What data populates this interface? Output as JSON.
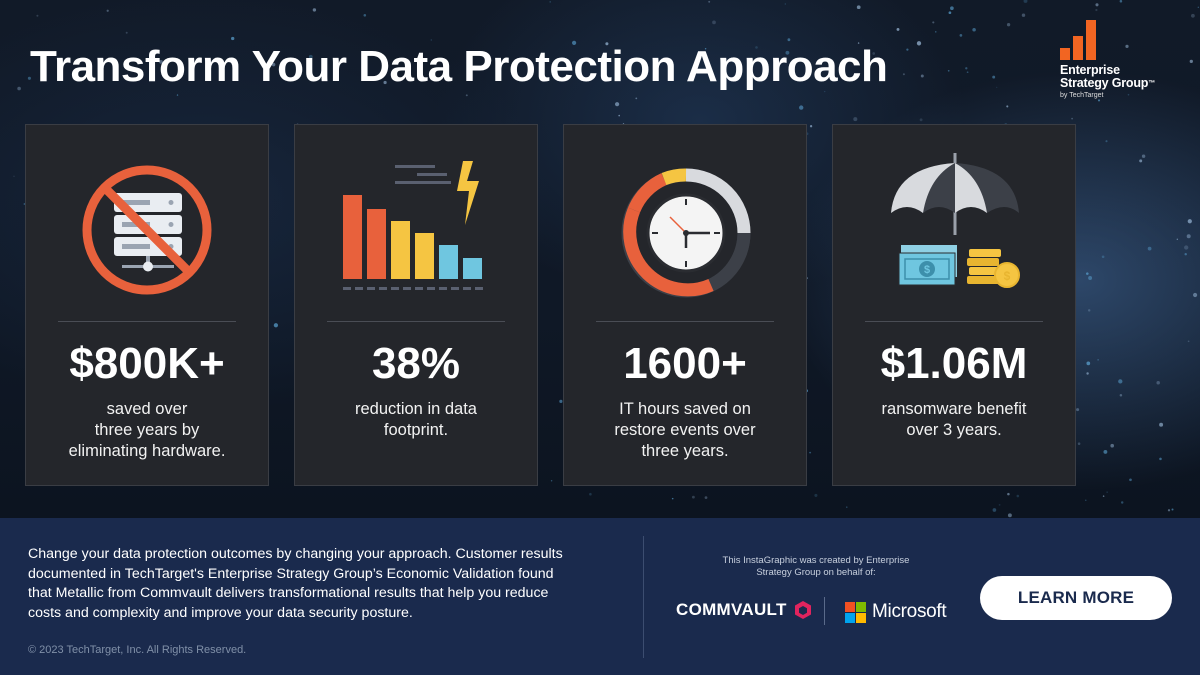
{
  "title": "Transform Your Data Protection Approach",
  "logo": {
    "name_line1": "Enterprise",
    "name_line2": "Strategy Group",
    "trademark": "™",
    "by": "by TechTarget",
    "accent": "#f26522"
  },
  "cards": [
    {
      "value": "$800K+",
      "desc_lines": [
        "saved over",
        "three years by",
        "eliminating hardware."
      ],
      "icon": "no-server-icon"
    },
    {
      "value": "38%",
      "desc_lines": [
        "reduction in data",
        "footprint."
      ],
      "icon": "bar-chart-lightning-icon"
    },
    {
      "value": "1600+",
      "desc_lines": [
        "IT hours saved on",
        "restore events over",
        "three years."
      ],
      "icon": "clock-icon"
    },
    {
      "value": "$1.06M",
      "desc_lines": [
        "ransomware benefit",
        "over 3 years."
      ],
      "icon": "umbrella-money-icon"
    }
  ],
  "footer": {
    "body_lines": [
      "Change your data protection outcomes by changing your approach. Customer results",
      "documented in TechTarget's Enterprise Strategy Group’s Economic Validation found",
      "that Metallic from Commvault delivers transformational results that help you reduce",
      "costs and complexity and improve your data security posture."
    ],
    "copyright": "© 2023 TechTarget, Inc. All Rights Reserved.",
    "credit_lines": [
      "This InstaGraphic was created by Enterprise",
      "Strategy Group on behalf of:"
    ],
    "commvault": "COMMVAULT",
    "microsoft": "Microsoft",
    "cta": "LEARN MORE"
  },
  "colors": {
    "card_bg": "#24262b",
    "footer_bg": "#1a2a4d",
    "orange": "#e8613c",
    "yellow": "#f5c542",
    "blue": "#6fc6e0"
  }
}
